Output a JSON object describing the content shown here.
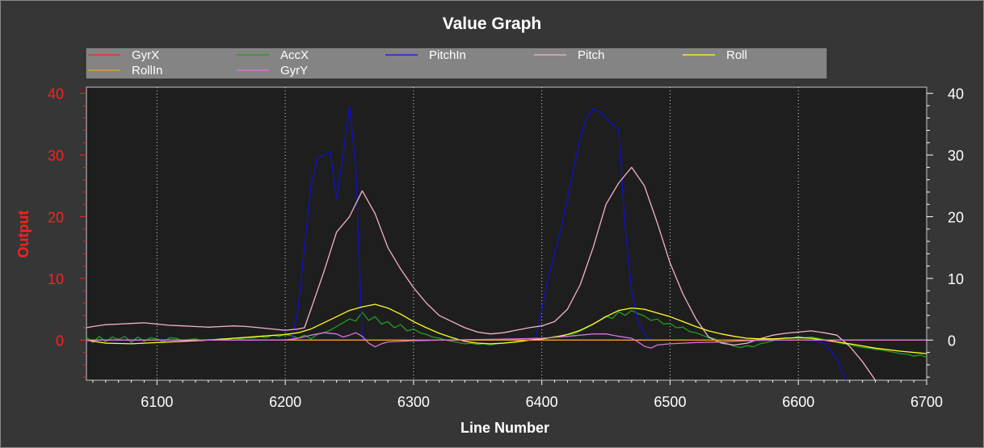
{
  "chart_data": {
    "type": "line",
    "title": "Value Graph",
    "xlabel": "Line Number",
    "ylabel": "Output",
    "xlim": [
      6045,
      6700
    ],
    "ylim": [
      -6.5,
      41
    ],
    "xticks": [
      6100,
      6200,
      6300,
      6400,
      6500,
      6600,
      6700
    ],
    "yticks": [
      0,
      10,
      20,
      30,
      40
    ],
    "grid": true,
    "legend_position": "top",
    "colors": {
      "background": "#363636",
      "plot_background": "#1e1e1e",
      "left_axis": "#ff2020",
      "right_axis": "#ffffff",
      "grid": "#dddddd",
      "legend_background": "#848484"
    },
    "series": [
      {
        "name": "GyrX",
        "color": "#ff2020",
        "x": [
          6045,
          6700
        ],
        "y": [
          0,
          0
        ]
      },
      {
        "name": "AccX",
        "color": "#1fa01f",
        "x": [
          6045,
          6050,
          6055,
          6060,
          6065,
          6070,
          6075,
          6080,
          6085,
          6090,
          6095,
          6100,
          6105,
          6110,
          6115,
          6120,
          6125,
          6130,
          6135,
          6140,
          6145,
          6150,
          6155,
          6160,
          6165,
          6170,
          6175,
          6180,
          6185,
          6190,
          6195,
          6200,
          6205,
          6210,
          6215,
          6220,
          6225,
          6230,
          6235,
          6240,
          6245,
          6250,
          6255,
          6260,
          6265,
          6270,
          6275,
          6280,
          6285,
          6290,
          6295,
          6300,
          6305,
          6310,
          6315,
          6320,
          6325,
          6330,
          6335,
          6340,
          6345,
          6350,
          6355,
          6360,
          6365,
          6370,
          6375,
          6380,
          6385,
          6390,
          6395,
          6400,
          6405,
          6410,
          6415,
          6420,
          6425,
          6430,
          6435,
          6440,
          6445,
          6450,
          6455,
          6460,
          6465,
          6470,
          6475,
          6480,
          6485,
          6490,
          6495,
          6500,
          6505,
          6510,
          6515,
          6520,
          6525,
          6530,
          6535,
          6540,
          6545,
          6550,
          6555,
          6560,
          6565,
          6570,
          6575,
          6580,
          6585,
          6590,
          6595,
          6600,
          6605,
          6610,
          6615,
          6620,
          6625,
          6630,
          6635,
          6640,
          6645,
          6650,
          6655,
          6660,
          6665,
          6670,
          6675,
          6680,
          6685,
          6690,
          6695,
          6700
        ],
        "y": [
          0.5,
          -0.4,
          0.6,
          -0.3,
          0.5,
          0.1,
          0.6,
          -0.4,
          0.5,
          -0.2,
          0.4,
          0.2,
          -0.3,
          0.4,
          0.3,
          -0.2,
          0.1,
          0.2,
          -0.1,
          0.1,
          0.0,
          0.2,
          0.1,
          0.3,
          0.2,
          0.4,
          0.3,
          0.6,
          0.4,
          0.8,
          0.6,
          0.9,
          0.7,
          0.3,
          0.8,
          0.2,
          0.9,
          1.2,
          1.6,
          2.2,
          2.8,
          3.4,
          3.1,
          4.5,
          3.2,
          3.8,
          2.6,
          3.0,
          2.0,
          2.5,
          1.5,
          1.8,
          1.2,
          0.9,
          0.5,
          0.3,
          0.0,
          -0.2,
          -0.4,
          -0.6,
          -0.5,
          -0.7,
          -0.6,
          -0.8,
          -0.6,
          -0.5,
          -0.4,
          -0.2,
          -0.2,
          0.0,
          0.1,
          0.3,
          0.3,
          0.6,
          0.5,
          0.9,
          1.0,
          1.5,
          2.0,
          2.6,
          3.2,
          3.9,
          3.5,
          4.6,
          4.0,
          4.8,
          4.3,
          3.9,
          3.2,
          3.4,
          2.6,
          2.7,
          2.0,
          2.1,
          1.4,
          1.2,
          0.8,
          0.4,
          0.2,
          -0.3,
          -0.6,
          -1.0,
          -1.2,
          -0.9,
          -1.1,
          -0.6,
          -0.4,
          -0.1,
          0.2,
          0.4,
          0.3,
          0.6,
          0.4,
          0.5,
          0.3,
          0.1,
          -0.1,
          -0.3,
          -0.6,
          -0.7,
          -1.0,
          -1.2,
          -1.3,
          -1.5,
          -1.6,
          -1.8,
          -2.0,
          -2.2,
          -2.3,
          -2.6,
          -2.4,
          -2.8
        ]
      },
      {
        "name": "PitchIn",
        "color": "#1010cc",
        "x": [
          6045,
          6205,
          6210,
          6215,
          6220,
          6225,
          6230,
          6235,
          6240,
          6245,
          6250,
          6255,
          6260,
          6395,
          6400,
          6405,
          6410,
          6415,
          6420,
          6425,
          6430,
          6435,
          6440,
          6445,
          6450,
          6455,
          6460,
          6465,
          6470,
          6475,
          6480,
          6485,
          6610,
          6620,
          6630,
          6640
        ],
        "y": [
          0,
          0,
          5,
          15,
          25,
          29.5,
          30,
          30.5,
          23,
          30,
          38,
          28,
          0,
          0,
          5,
          10,
          14,
          18,
          23,
          28,
          33,
          36,
          37.5,
          37,
          36,
          35,
          34,
          18,
          8,
          3,
          1,
          0,
          0,
          -0.5,
          -3,
          -8
        ]
      },
      {
        "name": "Pitch",
        "color": "#f4b3c8",
        "x": [
          6045,
          6050,
          6060,
          6070,
          6080,
          6090,
          6100,
          6110,
          6120,
          6130,
          6140,
          6150,
          6160,
          6170,
          6180,
          6190,
          6200,
          6210,
          6215,
          6220,
          6230,
          6240,
          6250,
          6260,
          6270,
          6280,
          6290,
          6300,
          6310,
          6320,
          6330,
          6340,
          6350,
          6360,
          6370,
          6380,
          6390,
          6400,
          6410,
          6420,
          6430,
          6440,
          6450,
          6460,
          6470,
          6480,
          6490,
          6500,
          6510,
          6520,
          6530,
          6540,
          6550,
          6560,
          6570,
          6580,
          6590,
          6600,
          6610,
          6620,
          6630,
          6640,
          6650,
          6660
        ],
        "y": [
          2.0,
          2.2,
          2.5,
          2.6,
          2.7,
          2.8,
          2.6,
          2.4,
          2.3,
          2.2,
          2.1,
          2.2,
          2.3,
          2.2,
          2.0,
          1.8,
          1.6,
          1.8,
          2.0,
          5,
          11,
          17.5,
          20,
          24.2,
          20.5,
          15,
          11.5,
          8.5,
          6,
          4,
          3,
          2,
          1.3,
          1.0,
          1.2,
          1.6,
          2.0,
          2.3,
          3,
          5,
          9,
          15,
          22,
          25.5,
          28,
          25,
          19,
          12.5,
          7.5,
          3.5,
          0.5,
          -0.5,
          -0.8,
          -0.5,
          0.2,
          0.8,
          1.1,
          1.3,
          1.5,
          1.2,
          0.8,
          -1,
          -3.5,
          -6.5
        ]
      },
      {
        "name": "Roll",
        "color": "#ffff22",
        "x": [
          6045,
          6060,
          6080,
          6100,
          6120,
          6140,
          6160,
          6180,
          6200,
          6210,
          6220,
          6230,
          6240,
          6250,
          6260,
          6270,
          6280,
          6290,
          6300,
          6310,
          6320,
          6330,
          6340,
          6350,
          6360,
          6370,
          6380,
          6390,
          6400,
          6410,
          6420,
          6430,
          6440,
          6450,
          6460,
          6470,
          6480,
          6490,
          6500,
          6510,
          6520,
          6530,
          6540,
          6550,
          6560,
          6570,
          6580,
          6590,
          6600,
          6610,
          6620,
          6640,
          6660,
          6680,
          6700
        ],
        "y": [
          0.0,
          -0.5,
          -0.6,
          -0.4,
          -0.2,
          0.0,
          0.3,
          0.6,
          0.9,
          1.2,
          1.8,
          2.8,
          3.8,
          4.8,
          5.4,
          5.8,
          5.2,
          4.2,
          3.0,
          2.0,
          1.1,
          0.4,
          -0.2,
          -0.5,
          -0.6,
          -0.5,
          -0.3,
          0.0,
          0.2,
          0.5,
          0.9,
          1.6,
          2.6,
          3.8,
          4.8,
          5.2,
          5.0,
          4.4,
          3.8,
          3.0,
          2.2,
          1.5,
          1.0,
          0.6,
          0.3,
          0.2,
          0.2,
          0.3,
          0.4,
          0.3,
          0.0,
          -0.6,
          -1.3,
          -1.8,
          -2.2
        ]
      },
      {
        "name": "RollIn",
        "color": "#f0a020",
        "x": [
          6045,
          6700
        ],
        "y": [
          0,
          0
        ]
      },
      {
        "name": "GyrY",
        "color": "#e070e0",
        "x": [
          6045,
          6200,
          6210,
          6220,
          6230,
          6240,
          6245,
          6250,
          6255,
          6260,
          6265,
          6270,
          6275,
          6280,
          6290,
          6300,
          6320,
          6350,
          6380,
          6400,
          6420,
          6440,
          6450,
          6460,
          6470,
          6475,
          6480,
          6485,
          6490,
          6500,
          6520,
          6540,
          6560,
          6580,
          6600,
          6620,
          6640,
          6700
        ],
        "y": [
          0,
          0,
          0.3,
          0.8,
          1.2,
          1.0,
          0.5,
          0.8,
          1.2,
          0.6,
          -0.5,
          -1.1,
          -0.6,
          -0.3,
          -0.2,
          -0.1,
          0,
          0.1,
          0.2,
          0.3,
          0.6,
          1.0,
          1.0,
          0.6,
          0.3,
          -0.3,
          -1.0,
          -1.3,
          -0.8,
          -0.6,
          -0.4,
          -0.3,
          -0.1,
          0,
          0,
          0,
          0,
          0
        ]
      }
    ]
  }
}
